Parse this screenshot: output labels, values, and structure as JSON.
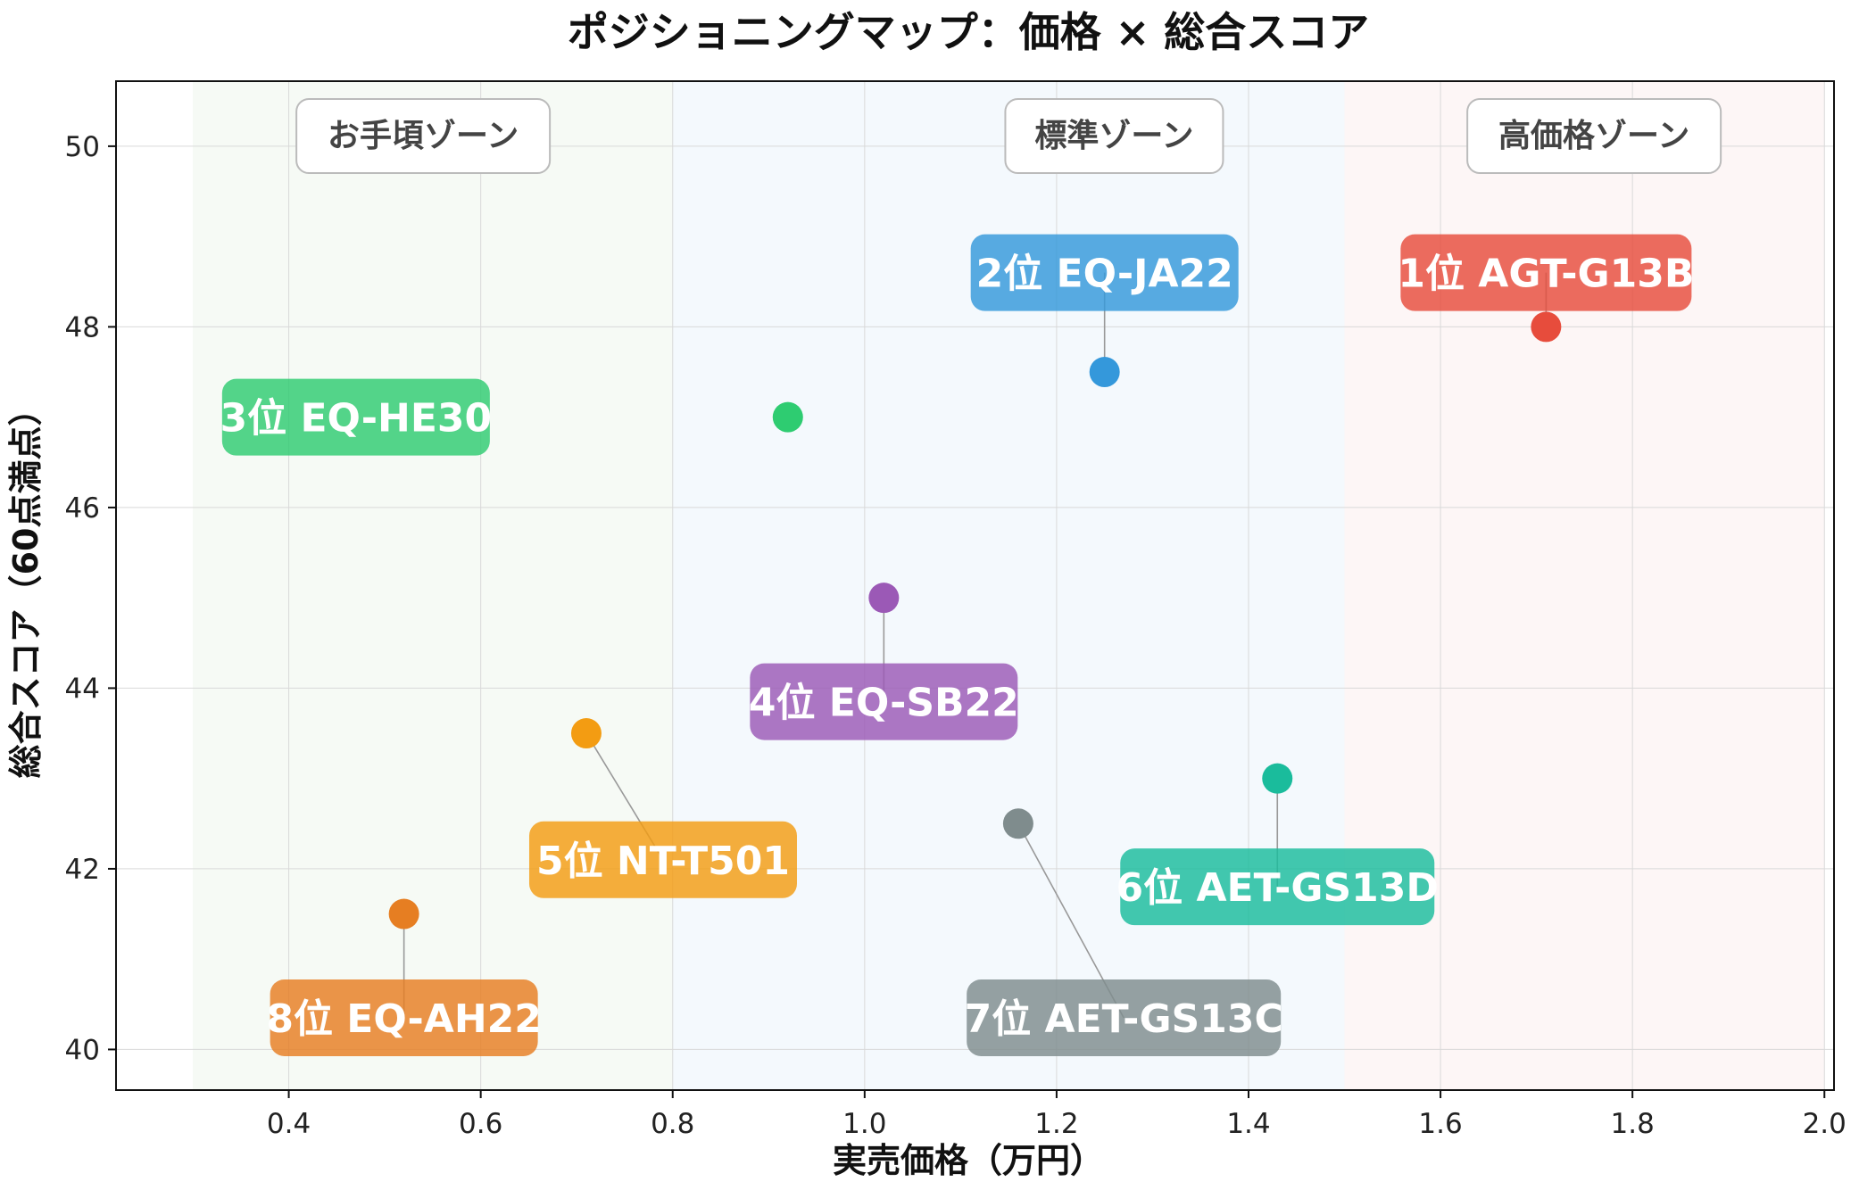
{
  "chart_data": {
    "type": "scatter",
    "title": "ポジショニングマップ：価格 × 総合スコア",
    "xlabel": "実売価格（万円）",
    "ylabel": "総合スコア（60点満点）",
    "xlim": [
      0.22,
      2.01
    ],
    "ylim": [
      39.55,
      50.72
    ],
    "x_ticks": [
      "0.4",
      "0.6",
      "0.8",
      "1.0",
      "1.2",
      "1.4",
      "1.6",
      "1.8",
      "2.0"
    ],
    "y_ticks": [
      "40",
      "42",
      "44",
      "46",
      "48",
      "50"
    ],
    "grid": true,
    "zones": [
      {
        "label": "お手頃ゾーン",
        "x_range": [
          0.3,
          0.8
        ],
        "color": "#eef5ec"
      },
      {
        "label": "標準ゾーン",
        "x_range": [
          0.8,
          1.5
        ],
        "color": "#eaf4fb"
      },
      {
        "label": "高価格ゾーン",
        "x_range": [
          1.5,
          2.0
        ],
        "color": "#fbeeee"
      }
    ],
    "points": [
      {
        "rank": "1位",
        "model": "AGT-G13B",
        "label": "1位 AGT-G13B",
        "x": 1.71,
        "y": 48.0,
        "color": "#e74c3c"
      },
      {
        "rank": "2位",
        "model": "EQ-JA22",
        "label": "2位 EQ-JA22",
        "x": 1.25,
        "y": 47.5,
        "color": "#3498db"
      },
      {
        "rank": "3位",
        "model": "EQ-HE30",
        "label": "3位 EQ-HE30",
        "x": 0.92,
        "y": 47.0,
        "color": "#2ecc71"
      },
      {
        "rank": "4位",
        "model": "EQ-SB22",
        "label": "4位 EQ-SB22",
        "x": 1.02,
        "y": 45.0,
        "color": "#9b59b6"
      },
      {
        "rank": "5位",
        "model": "NT-T501",
        "label": "5位 NT-T501",
        "x": 0.71,
        "y": 43.5,
        "color": "#f39c12"
      },
      {
        "rank": "6位",
        "model": "AET-GS13D",
        "label": "6位 AET-GS13D",
        "x": 1.43,
        "y": 43.0,
        "color": "#1abc9c"
      },
      {
        "rank": "7位",
        "model": "AET-GS13C",
        "label": "7位 AET-GS13C",
        "x": 1.16,
        "y": 42.5,
        "color": "#7f8c8d"
      },
      {
        "rank": "8位",
        "model": "EQ-AH22",
        "label": "8位 EQ-AH22",
        "x": 0.52,
        "y": 41.5,
        "color": "#e67e22"
      }
    ]
  }
}
